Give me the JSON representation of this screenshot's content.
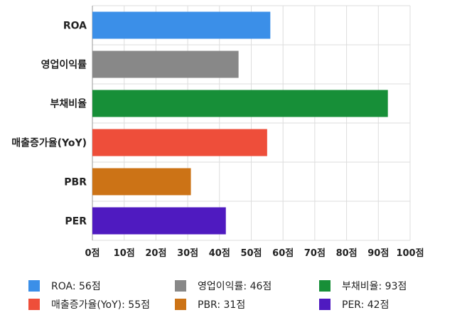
{
  "chart_data": {
    "type": "bar",
    "orientation": "horizontal",
    "categories": [
      "ROA",
      "영업이익률",
      "부채비율",
      "매출증가율(YoY)",
      "PBR",
      "PER"
    ],
    "values": [
      56,
      46,
      93,
      55,
      31,
      42
    ],
    "colors": [
      "#3b8fe8",
      "#888888",
      "#178f38",
      "#ee4e3a",
      "#cc7316",
      "#4f1ac0"
    ],
    "xlim": [
      0,
      100
    ],
    "xticks": [
      0,
      10,
      20,
      30,
      40,
      50,
      60,
      70,
      80,
      90,
      100
    ],
    "tick_suffix": "점",
    "grid": true,
    "legend_position": "bottom",
    "legend": [
      {
        "label": "ROA: 56점",
        "color": "#3b8fe8"
      },
      {
        "label": "영업이익률: 46점",
        "color": "#888888"
      },
      {
        "label": "부채비율: 93점",
        "color": "#178f38"
      },
      {
        "label": "매출증가율(YoY): 55점",
        "color": "#ee4e3a"
      },
      {
        "label": "PBR: 31점",
        "color": "#cc7316"
      },
      {
        "label": "PER: 42점",
        "color": "#4f1ac0"
      }
    ]
  }
}
